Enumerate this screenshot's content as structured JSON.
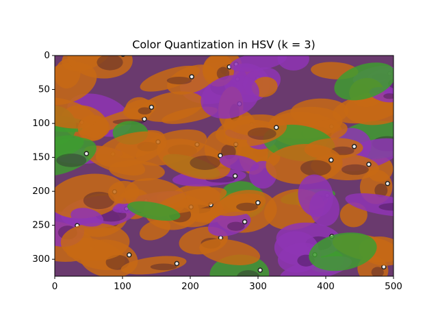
{
  "chart_data": {
    "type": "image",
    "title": "Color Quantization in HSV (k = 3)",
    "xlim": [
      0,
      500
    ],
    "xticks": [
      0,
      100,
      200,
      300,
      400,
      500
    ],
    "ylim": [
      325,
      0
    ],
    "yticks": [
      0,
      50,
      100,
      150,
      200,
      250,
      300
    ],
    "palette": [
      "#c76a14",
      "#8e35b4",
      "#3e9c30"
    ]
  }
}
